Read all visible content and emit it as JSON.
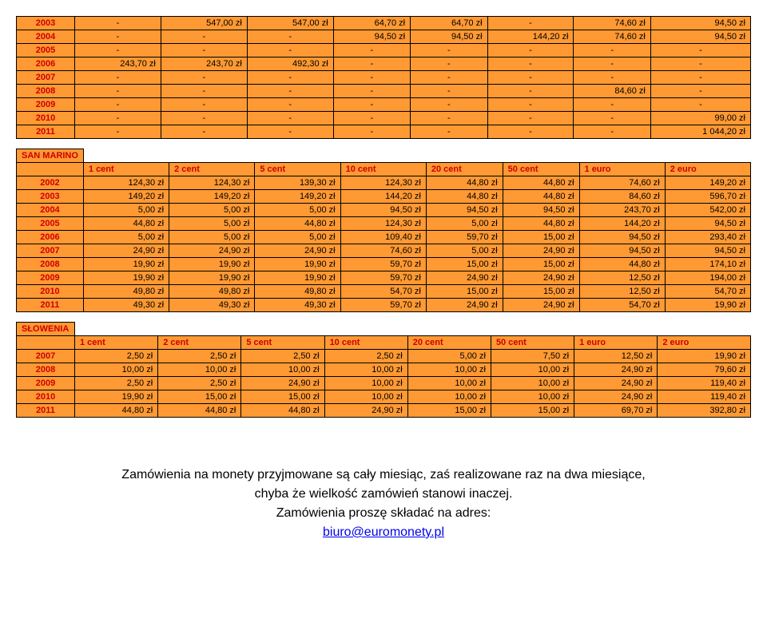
{
  "colors": {
    "orange_bg": "#ff9933",
    "red_text": "#cc0000",
    "border": "#000000"
  },
  "tables": [
    {
      "name": "table-top",
      "headerRow": null,
      "rows": [
        {
          "year": "2003",
          "cells": [
            "-",
            "547,00 zł",
            "547,00 zł",
            "64,70 zł",
            "64,70 zł",
            "-",
            "74,60 zł",
            "94,50 zł"
          ]
        },
        {
          "year": "2004",
          "cells": [
            "-",
            "-",
            "-",
            "94,50 zł",
            "94,50 zł",
            "144,20 zł",
            "74,60 zł",
            "94,50 zł"
          ]
        },
        {
          "year": "2005",
          "cells": [
            "-",
            "-",
            "-",
            "-",
            "-",
            "-",
            "-",
            "-"
          ]
        },
        {
          "year": "2006",
          "cells": [
            "243,70 zł",
            "243,70 zł",
            "492,30 zł",
            "-",
            "-",
            "-",
            "-",
            "-"
          ]
        },
        {
          "year": "2007",
          "cells": [
            "-",
            "-",
            "-",
            "-",
            "-",
            "-",
            "-",
            "-"
          ]
        },
        {
          "year": "2008",
          "cells": [
            "-",
            "-",
            "-",
            "-",
            "-",
            "-",
            "84,60 zł",
            "-"
          ]
        },
        {
          "year": "2009",
          "cells": [
            "-",
            "-",
            "-",
            "-",
            "-",
            "-",
            "-",
            "-"
          ]
        },
        {
          "year": "2010",
          "cells": [
            "-",
            "-",
            "-",
            "-",
            "-",
            "-",
            "-",
            "99,00 zł"
          ]
        },
        {
          "year": "2011",
          "cells": [
            "-",
            "-",
            "-",
            "-",
            "-",
            "-",
            "-",
            "1 044,20 zł"
          ]
        }
      ]
    },
    {
      "name": "table-san-marino",
      "section_label": "SAN MARINO",
      "headerRow": [
        "1 cent",
        "2 cent",
        "5 cent",
        "10 cent",
        "20 cent",
        "50 cent",
        "1 euro",
        "2 euro"
      ],
      "rows": [
        {
          "year": "2002",
          "cells": [
            "124,30 zł",
            "124,30 zł",
            "139,30 zł",
            "124,30 zł",
            "44,80 zł",
            "44,80 zł",
            "74,60 zł",
            "149,20 zł"
          ]
        },
        {
          "year": "2003",
          "cells": [
            "149,20 zł",
            "149,20 zł",
            "149,20 zł",
            "144,20 zł",
            "44,80 zł",
            "44,80 zł",
            "84,60 zł",
            "596,70 zł"
          ]
        },
        {
          "year": "2004",
          "cells": [
            "5,00 zł",
            "5,00 zł",
            "5,00 zł",
            "94,50 zł",
            "94,50 zł",
            "94,50 zł",
            "243,70 zł",
            "542,00 zł"
          ]
        },
        {
          "year": "2005",
          "cells": [
            "44,80 zł",
            "5,00 zł",
            "44,80 zł",
            "124,30 zł",
            "5,00 zł",
            "44,80 zł",
            "144,20 zł",
            "94,50 zł"
          ]
        },
        {
          "year": "2006",
          "cells": [
            "5,00 zł",
            "5,00 zł",
            "5,00 zł",
            "109,40 zł",
            "59,70 zł",
            "15,00 zł",
            "94,50 zł",
            "293,40 zł"
          ]
        },
        {
          "year": "2007",
          "cells": [
            "24,90 zł",
            "24,90 zł",
            "24,90 zł",
            "74,60 zł",
            "5,00 zł",
            "24,90 zł",
            "94,50 zł",
            "94,50 zł"
          ]
        },
        {
          "year": "2008",
          "cells": [
            "19,90 zł",
            "19,90 zł",
            "19,90 zł",
            "59,70 zł",
            "15,00 zł",
            "15,00 zł",
            "44,80 zł",
            "174,10 zł"
          ]
        },
        {
          "year": "2009",
          "cells": [
            "19,90 zł",
            "19,90 zł",
            "19,90 zł",
            "59,70 zł",
            "24,90 zł",
            "24,90 zł",
            "12,50 zł",
            "194,00 zł"
          ]
        },
        {
          "year": "2010",
          "cells": [
            "49,80 zł",
            "49,80 zł",
            "49,80 zł",
            "54,70 zł",
            "15,00 zł",
            "15,00 zł",
            "12,50 zł",
            "54,70 zł"
          ]
        },
        {
          "year": "2011",
          "cells": [
            "49,30 zł",
            "49,30 zł",
            "49,30 zł",
            "59,70 zł",
            "24,90 zł",
            "24,90 zł",
            "54,70 zł",
            "19,90 zł"
          ]
        }
      ]
    },
    {
      "name": "table-slowenia",
      "section_label": "SŁOWENIA",
      "headerRow": [
        "1 cent",
        "2 cent",
        "5 cent",
        "10 cent",
        "20 cent",
        "50 cent",
        "1 euro",
        "2 euro"
      ],
      "rows": [
        {
          "year": "2007",
          "cells": [
            "2,50 zł",
            "2,50 zł",
            "2,50 zł",
            "2,50 zł",
            "5,00 zł",
            "7,50 zł",
            "12,50 zł",
            "19,90 zł"
          ]
        },
        {
          "year": "2008",
          "cells": [
            "10,00 zł",
            "10,00 zł",
            "10,00 zł",
            "10,00 zł",
            "10,00 zł",
            "10,00 zł",
            "24,90 zł",
            "79,60 zł"
          ]
        },
        {
          "year": "2009",
          "cells": [
            "2,50 zł",
            "2,50 zł",
            "24,90 zł",
            "10,00 zł",
            "10,00 zł",
            "10,00 zł",
            "24,90 zł",
            "119,40 zł"
          ]
        },
        {
          "year": "2010",
          "cells": [
            "19,90 zł",
            "15,00 zł",
            "15,00 zł",
            "10,00 zł",
            "10,00 zł",
            "10,00 zł",
            "24,90 zł",
            "119,40 zł"
          ]
        },
        {
          "year": "2011",
          "cells": [
            "44,80 zł",
            "44,80 zł",
            "44,80 zł",
            "24,90 zł",
            "15,00 zł",
            "15,00 zł",
            "69,70 zł",
            "392,80 zł"
          ]
        }
      ]
    }
  ],
  "footer": {
    "line1": "Zamówienia na monety przyjmowane są cały miesiąc, zaś realizowane raz na dwa miesiące,",
    "line2": "chyba że wielkość zamówień stanowi inaczej.",
    "line3": "Zamówienia proszę składać na adres:",
    "link": "biuro@euromonety.pl"
  }
}
